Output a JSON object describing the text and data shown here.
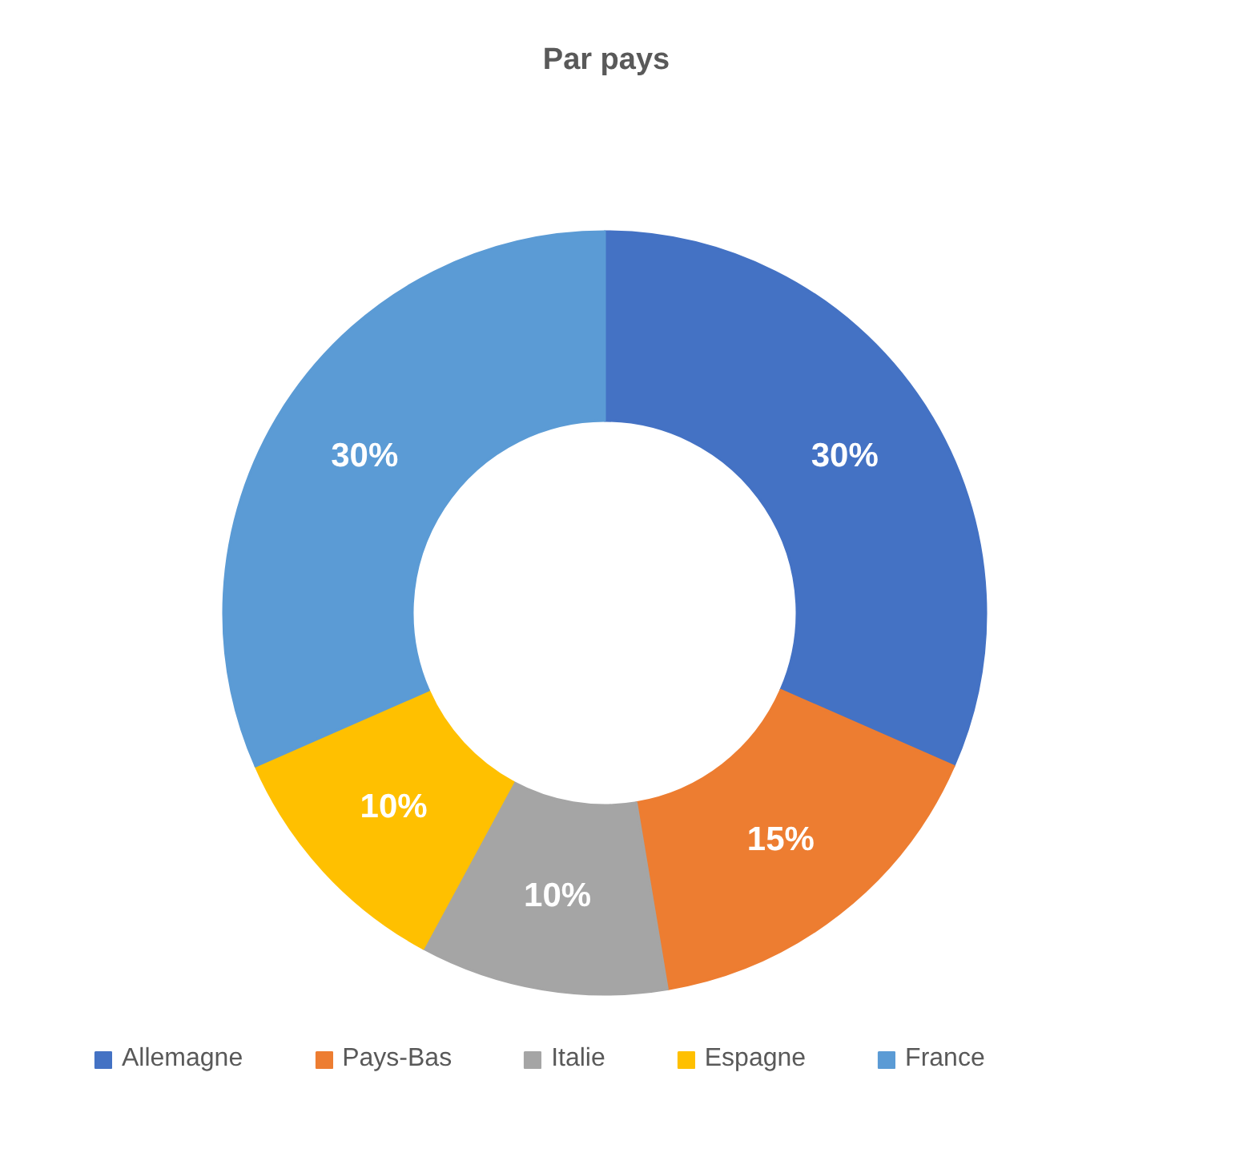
{
  "chart_data": {
    "type": "donut",
    "title": "Par pays",
    "categories": [
      "Allemagne",
      "Pays-Bas",
      "Italie",
      "Espagne",
      "France"
    ],
    "values": [
      30,
      15,
      10,
      10,
      30
    ],
    "value_labels": [
      "30%",
      "15%",
      "10%",
      "10%",
      "30%"
    ],
    "colors": [
      "#4472c4",
      "#ed7d31",
      "#a5a5a5",
      "#ffc000",
      "#5b9bd5"
    ],
    "legend": "bottom"
  }
}
